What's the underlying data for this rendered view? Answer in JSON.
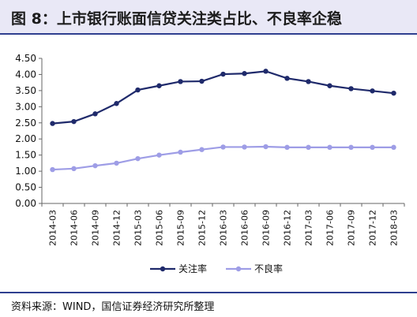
{
  "figure": {
    "title": "图 8：上市银行账面信贷关注类占比、不良率企稳",
    "source": "资料来源：WIND，国信证券经济研究所整理"
  },
  "chart_data": {
    "type": "line",
    "title": "",
    "xlabel": "",
    "ylabel": "",
    "ylim": [
      0,
      4.5
    ],
    "yticks": [
      "0.00",
      "0.50",
      "1.00",
      "1.50",
      "2.00",
      "2.50",
      "3.00",
      "3.50",
      "4.00",
      "4.50"
    ],
    "grid": false,
    "legend_position": "bottom",
    "categories": [
      "2014-03",
      "2014-06",
      "2014-09",
      "2014-12",
      "2015-03",
      "2015-06",
      "2015-09",
      "2015-12",
      "2016-03",
      "2016-06",
      "2016-09",
      "2016-12",
      "2017-03",
      "2017-06",
      "2017-09",
      "2017-12",
      "2018-03"
    ],
    "series": [
      {
        "name": "关注率",
        "color": "#1f2a6b",
        "values": [
          2.48,
          2.54,
          2.78,
          3.1,
          3.52,
          3.65,
          3.78,
          3.79,
          4.01,
          4.03,
          4.1,
          3.88,
          3.78,
          3.65,
          3.56,
          3.49,
          3.42
        ]
      },
      {
        "name": "不良率",
        "color": "#9e9de6",
        "values": [
          1.05,
          1.08,
          1.17,
          1.25,
          1.39,
          1.5,
          1.59,
          1.67,
          1.75,
          1.75,
          1.76,
          1.74,
          1.74,
          1.74,
          1.74,
          1.74,
          1.74
        ]
      }
    ]
  }
}
